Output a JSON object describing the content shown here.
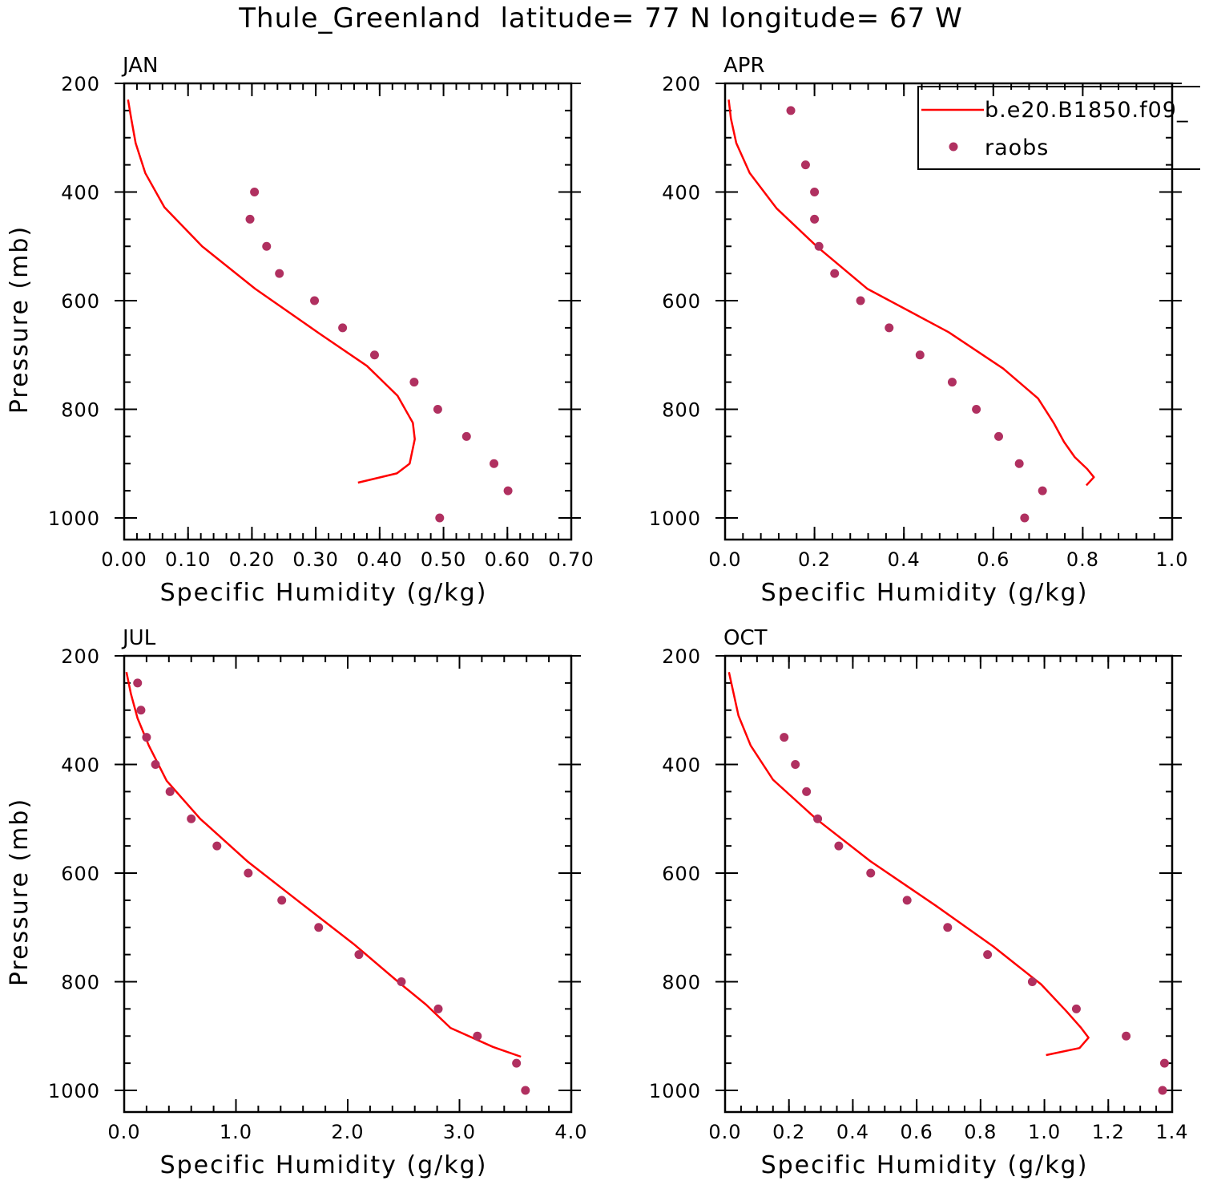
{
  "figure_title": "Thule_Greenland  latitude= 77 N longitude= 67 W",
  "colors": {
    "model": "#ff0000",
    "obs": "#b03060",
    "axis": "#000000"
  },
  "legend": {
    "model_label": "b.e20.B1850.f09_",
    "obs_label": "raobs"
  },
  "chart_data": [
    {
      "type": "line",
      "panel": "JAN",
      "xlabel": "Specific Humidity (g/kg)",
      "ylabel": "Pressure (mb)",
      "xlim": [
        0,
        0.7
      ],
      "ylim": [
        1000,
        200
      ],
      "x_ticks": [
        0,
        0.1,
        0.2,
        0.3,
        0.4,
        0.5,
        0.6,
        0.7
      ],
      "x_tick_labels": [
        "0.00",
        "0.10",
        "0.20",
        "0.30",
        "0.40",
        "0.50",
        "0.60",
        "0.70"
      ],
      "x_minor_step": 0.02,
      "y_ticks": [
        200,
        400,
        600,
        800,
        1000
      ],
      "y_tick_labels": [
        "200",
        "400",
        "600",
        "800",
        "1000"
      ],
      "y_minor_step": 50,
      "series": [
        {
          "name": "b.e20.B1850.f09_",
          "kind": "line",
          "points": [
            [
              0.006,
              230
            ],
            [
              0.011,
              265
            ],
            [
              0.018,
              310
            ],
            [
              0.033,
              365
            ],
            [
              0.063,
              428
            ],
            [
              0.122,
              500
            ],
            [
              0.205,
              578
            ],
            [
              0.305,
              660
            ],
            [
              0.38,
              720
            ],
            [
              0.428,
              775
            ],
            [
              0.452,
              825
            ],
            [
              0.455,
              855
            ],
            [
              0.447,
              900
            ],
            [
              0.427,
              918
            ],
            [
              0.366,
              935
            ]
          ]
        },
        {
          "name": "raobs",
          "kind": "scatter",
          "points": [
            [
              0.204,
              400
            ],
            [
              0.197,
              450
            ],
            [
              0.223,
              500
            ],
            [
              0.243,
              550
            ],
            [
              0.298,
              600
            ],
            [
              0.342,
              650
            ],
            [
              0.392,
              700
            ],
            [
              0.454,
              750
            ],
            [
              0.491,
              800
            ],
            [
              0.536,
              850
            ],
            [
              0.579,
              900
            ],
            [
              0.601,
              950
            ],
            [
              0.494,
              1000
            ]
          ]
        }
      ]
    },
    {
      "type": "line",
      "panel": "APR",
      "xlabel": "Specific Humidity (g/kg)",
      "ylabel": "",
      "xlim": [
        0,
        1.0
      ],
      "ylim": [
        1000,
        200
      ],
      "x_ticks": [
        0,
        0.2,
        0.4,
        0.6,
        0.8,
        1.0
      ],
      "x_tick_labels": [
        "0.0",
        "0.2",
        "0.4",
        "0.6",
        "0.8",
        "1.0"
      ],
      "x_minor_step": 0.04,
      "y_ticks": [
        200,
        400,
        600,
        800,
        1000
      ],
      "y_tick_labels": [
        "200",
        "400",
        "600",
        "800",
        "1000"
      ],
      "y_minor_step": 50,
      "legend": true,
      "series": [
        {
          "name": "b.e20.B1850.f09_",
          "kind": "line",
          "points": [
            [
              0.008,
              230
            ],
            [
              0.013,
              265
            ],
            [
              0.025,
              310
            ],
            [
              0.055,
              365
            ],
            [
              0.115,
              430
            ],
            [
              0.205,
              500
            ],
            [
              0.318,
              578
            ],
            [
              0.5,
              658
            ],
            [
              0.622,
              725
            ],
            [
              0.7,
              780
            ],
            [
              0.735,
              825
            ],
            [
              0.758,
              860
            ],
            [
              0.782,
              888
            ],
            [
              0.81,
              910
            ],
            [
              0.825,
              925
            ],
            [
              0.808,
              940
            ]
          ]
        },
        {
          "name": "raobs",
          "kind": "scatter",
          "points": [
            [
              0.147,
              250
            ],
            [
              0.18,
              350
            ],
            [
              0.2,
              400
            ],
            [
              0.2,
              450
            ],
            [
              0.21,
              500
            ],
            [
              0.245,
              550
            ],
            [
              0.303,
              600
            ],
            [
              0.367,
              650
            ],
            [
              0.436,
              700
            ],
            [
              0.508,
              750
            ],
            [
              0.562,
              800
            ],
            [
              0.612,
              850
            ],
            [
              0.658,
              900
            ],
            [
              0.71,
              950
            ],
            [
              0.67,
              1000
            ]
          ]
        }
      ]
    },
    {
      "type": "line",
      "panel": "JUL",
      "xlabel": "Specific Humidity (g/kg)",
      "ylabel": "Pressure (mb)",
      "xlim": [
        0,
        4.0
      ],
      "ylim": [
        1000,
        200
      ],
      "x_ticks": [
        0,
        1.0,
        2.0,
        3.0,
        4.0
      ],
      "x_tick_labels": [
        "0.0",
        "1.0",
        "2.0",
        "3.0",
        "4.0"
      ],
      "x_minor_step": 0.2,
      "y_ticks": [
        200,
        400,
        600,
        800,
        1000
      ],
      "y_tick_labels": [
        "200",
        "400",
        "600",
        "800",
        "1000"
      ],
      "y_minor_step": 50,
      "series": [
        {
          "name": "b.e20.B1850.f09_",
          "kind": "line",
          "points": [
            [
              0.02,
              230
            ],
            [
              0.06,
              270
            ],
            [
              0.12,
              315
            ],
            [
              0.22,
              365
            ],
            [
              0.38,
              430
            ],
            [
              0.68,
              500
            ],
            [
              1.1,
              578
            ],
            [
              1.58,
              655
            ],
            [
              2.05,
              730
            ],
            [
              2.45,
              800
            ],
            [
              2.7,
              842
            ],
            [
              2.92,
              885
            ],
            [
              3.3,
              920
            ],
            [
              3.55,
              938
            ]
          ]
        },
        {
          "name": "raobs",
          "kind": "scatter",
          "points": [
            [
              0.12,
              250
            ],
            [
              0.15,
              300
            ],
            [
              0.2,
              350
            ],
            [
              0.28,
              400
            ],
            [
              0.41,
              450
            ],
            [
              0.6,
              500
            ],
            [
              0.83,
              550
            ],
            [
              1.11,
              600
            ],
            [
              1.41,
              650
            ],
            [
              1.74,
              700
            ],
            [
              2.1,
              750
            ],
            [
              2.48,
              800
            ],
            [
              2.81,
              850
            ],
            [
              3.16,
              900
            ],
            [
              3.51,
              950
            ],
            [
              3.59,
              1000
            ]
          ]
        }
      ]
    },
    {
      "type": "line",
      "panel": "OCT",
      "xlabel": "Specific Humidity (g/kg)",
      "ylabel": "",
      "xlim": [
        0,
        1.4
      ],
      "ylim": [
        1000,
        200
      ],
      "x_ticks": [
        0,
        0.2,
        0.4,
        0.6,
        0.8,
        1.0,
        1.2,
        1.4
      ],
      "x_tick_labels": [
        "0.0",
        "0.2",
        "0.4",
        "0.6",
        "0.8",
        "1.0",
        "1.2",
        "1.4"
      ],
      "x_minor_step": 0.05,
      "y_ticks": [
        200,
        400,
        600,
        800,
        1000
      ],
      "y_tick_labels": [
        "200",
        "400",
        "600",
        "800",
        "1000"
      ],
      "y_minor_step": 50,
      "series": [
        {
          "name": "b.e20.B1850.f09_",
          "kind": "line",
          "points": [
            [
              0.012,
              230
            ],
            [
              0.025,
              265
            ],
            [
              0.042,
              310
            ],
            [
              0.08,
              365
            ],
            [
              0.15,
              428
            ],
            [
              0.285,
              500
            ],
            [
              0.455,
              578
            ],
            [
              0.66,
              660
            ],
            [
              0.84,
              735
            ],
            [
              0.99,
              805
            ],
            [
              1.07,
              855
            ],
            [
              1.115,
              885
            ],
            [
              1.138,
              903
            ],
            [
              1.11,
              922
            ],
            [
              1.005,
              935
            ]
          ]
        },
        {
          "name": "raobs",
          "kind": "scatter",
          "points": [
            [
              0.185,
              350
            ],
            [
              0.22,
              400
            ],
            [
              0.255,
              450
            ],
            [
              0.29,
              500
            ],
            [
              0.356,
              550
            ],
            [
              0.456,
              600
            ],
            [
              0.57,
              650
            ],
            [
              0.697,
              700
            ],
            [
              0.822,
              750
            ],
            [
              0.962,
              800
            ],
            [
              1.1,
              850
            ],
            [
              1.256,
              900
            ],
            [
              1.376,
              950
            ],
            [
              1.37,
              1000
            ]
          ]
        }
      ]
    }
  ]
}
